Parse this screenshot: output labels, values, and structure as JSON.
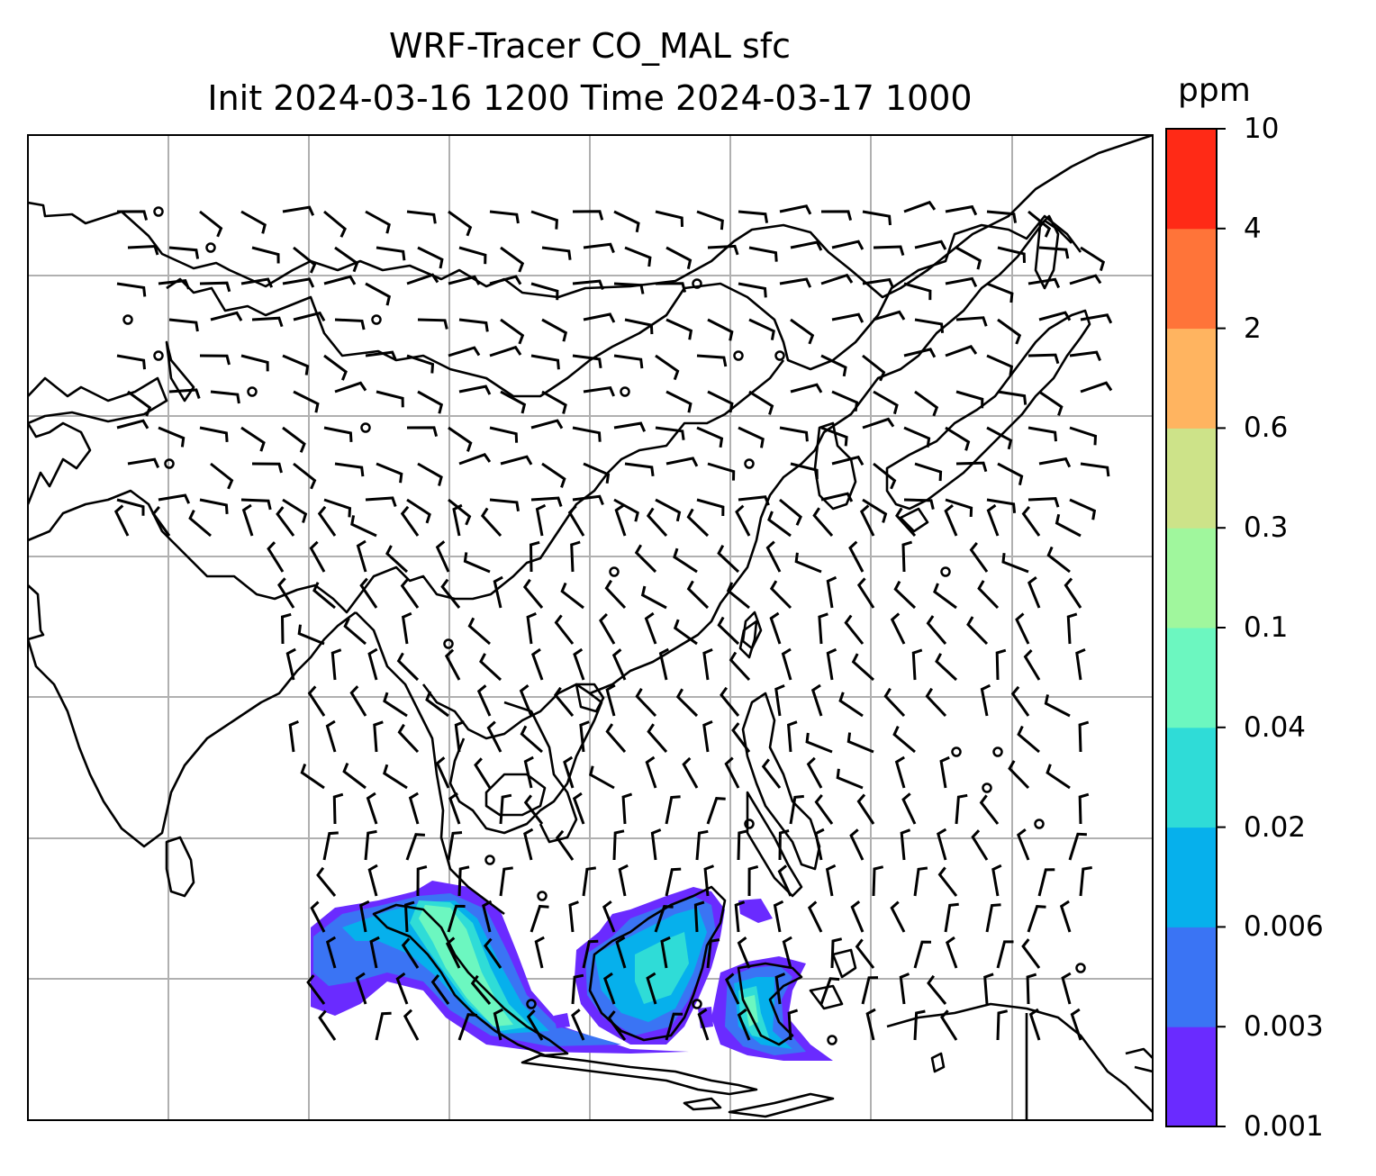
{
  "title": {
    "line1": "WRF-Tracer CO_MAL sfc",
    "line2": "Init 2024-03-16 1200 Time 2024-03-17 1000"
  },
  "colorbar": {
    "unit": "ppm",
    "levels": [
      "0.001",
      "0.003",
      "0.006",
      "0.02",
      "0.04",
      "0.1",
      "0.3",
      "0.6",
      "2",
      "4",
      "10"
    ],
    "colors": [
      "#6a2bff",
      "#3a74f4",
      "#06b0ec",
      "#2fdcd7",
      "#6cf7c0",
      "#a0f79d",
      "#cde389",
      "#ffb460",
      "#ff7439",
      "#ff2a16"
    ]
  },
  "map": {
    "gridlines": "on",
    "overlay": "surface wind barbs",
    "coastline_color": "#000000",
    "grid_color": "#b0b0b0"
  }
}
